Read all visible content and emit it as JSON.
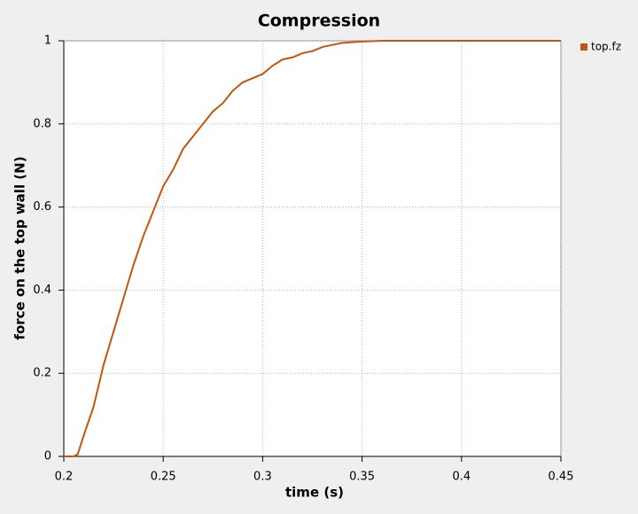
{
  "chart_data": {
    "type": "line",
    "title": "Compression",
    "x_label": "time (s)",
    "y_label": "force on the top wall (N)",
    "x": [
      0.2,
      0.205,
      0.207,
      0.21,
      0.215,
      0.22,
      0.225,
      0.23,
      0.235,
      0.24,
      0.245,
      0.25,
      0.255,
      0.26,
      0.265,
      0.27,
      0.275,
      0.28,
      0.285,
      0.29,
      0.295,
      0.3,
      0.305,
      0.31,
      0.315,
      0.32,
      0.325,
      0.33,
      0.335,
      0.34,
      0.35,
      0.36,
      0.37,
      0.45
    ],
    "series": [
      {
        "name": "top.fz",
        "color": "#c2560c",
        "values": [
          0,
          0,
          0.005,
          0.05,
          0.12,
          0.22,
          0.3,
          0.38,
          0.46,
          0.53,
          0.59,
          0.65,
          0.69,
          0.74,
          0.77,
          0.8,
          0.83,
          0.85,
          0.88,
          0.9,
          0.91,
          0.92,
          0.94,
          0.955,
          0.96,
          0.97,
          0.975,
          0.985,
          0.99,
          0.995,
          0.998,
          1,
          1,
          1
        ]
      }
    ],
    "xlim": [
      0.2,
      0.45
    ],
    "xticks": [
      0.2,
      0.25,
      0.3,
      0.35,
      0.4,
      0.45
    ],
    "ylim": [
      0,
      1
    ],
    "yticks": [
      0,
      0.2,
      0.4,
      0.6,
      0.8,
      1
    ],
    "grid": true,
    "legend": "right"
  }
}
